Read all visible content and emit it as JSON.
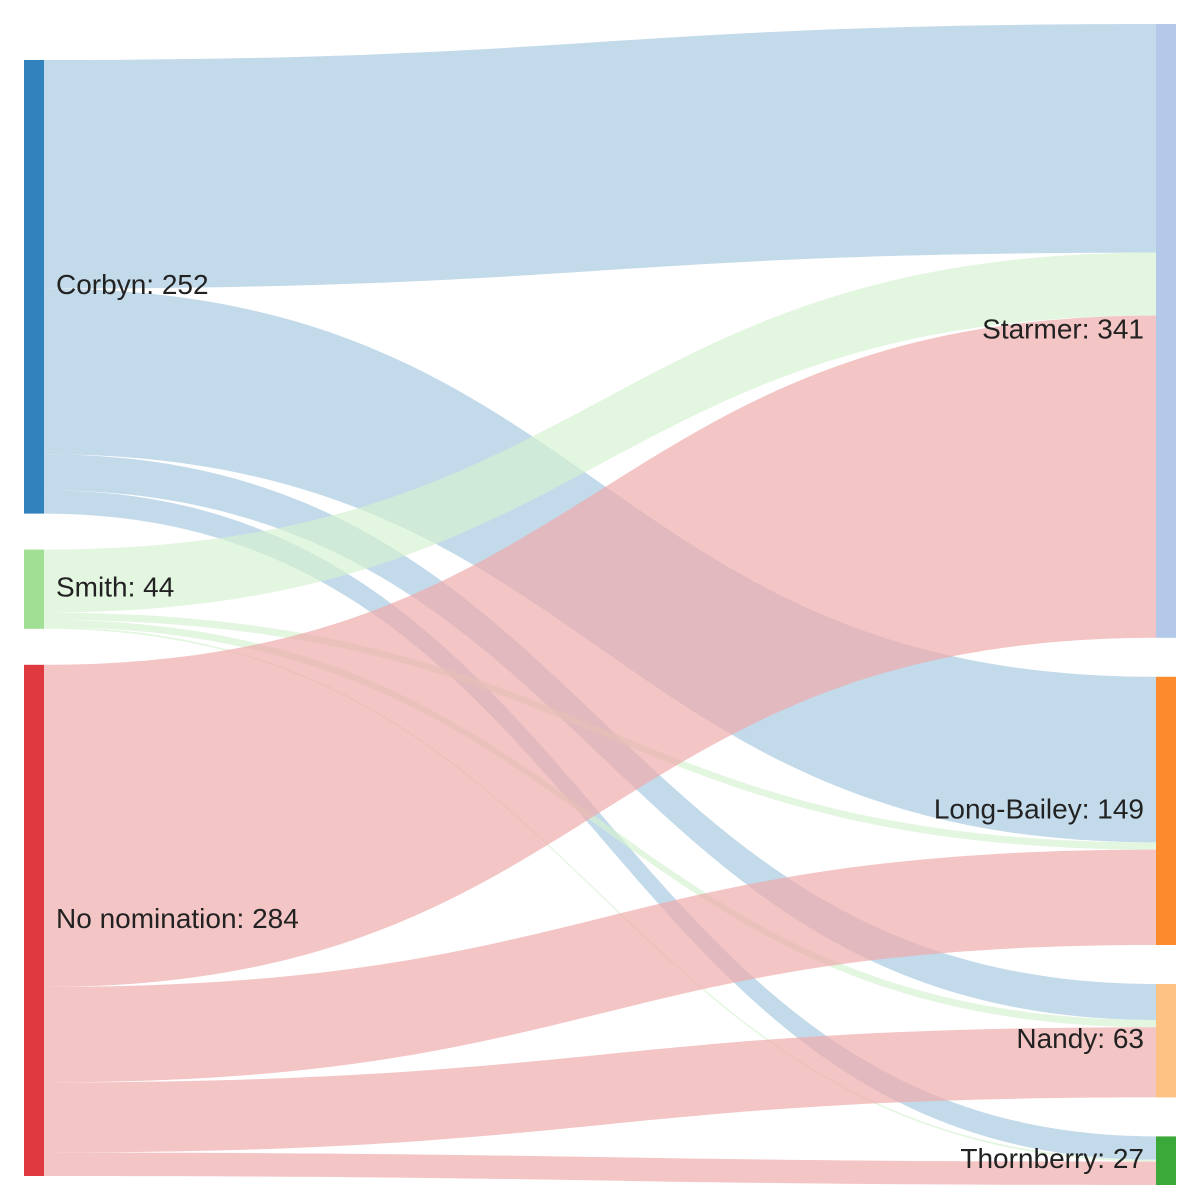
{
  "colors": {
    "Corbyn": "#3182bd",
    "Smith": "#a1e094",
    "No nomination": "#de3a3f",
    "Starmer": "#b4c8ea",
    "Long-Bailey": "#fd8a2c",
    "Nandy": "#fec284",
    "Thornberry": "#3ba83a"
  },
  "link_colors": {
    "Corbyn": "#a6c8e0",
    "Smith": "#d6f2d2",
    "No nomination": "#efaaaa"
  },
  "chart_data": {
    "type": "sankey",
    "title": "",
    "sources": [
      {
        "name": "Corbyn",
        "value": 252,
        "label": "Corbyn: 252"
      },
      {
        "name": "Smith",
        "value": 44,
        "label": "Smith: 44"
      },
      {
        "name": "No nomination",
        "value": 284,
        "label": "No nomination: 284"
      }
    ],
    "targets": [
      {
        "name": "Starmer",
        "value": 341,
        "label": "Starmer: 341"
      },
      {
        "name": "Long-Bailey",
        "value": 149,
        "label": "Long-Bailey: 149"
      },
      {
        "name": "Nandy",
        "value": 63,
        "label": "Nandy: 63"
      },
      {
        "name": "Thornberry",
        "value": 27,
        "label": "Thornberry: 27"
      }
    ],
    "links": [
      {
        "source": "Corbyn",
        "target": "Starmer",
        "value": 127
      },
      {
        "source": "Corbyn",
        "target": "Long-Bailey",
        "value": 92
      },
      {
        "source": "Corbyn",
        "target": "Nandy",
        "value": 20
      },
      {
        "source": "Corbyn",
        "target": "Thornberry",
        "value": 13
      },
      {
        "source": "Smith",
        "target": "Starmer",
        "value": 35
      },
      {
        "source": "Smith",
        "target": "Long-Bailey",
        "value": 4
      },
      {
        "source": "Smith",
        "target": "Nandy",
        "value": 4
      },
      {
        "source": "Smith",
        "target": "Thornberry",
        "value": 1
      },
      {
        "source": "No nomination",
        "target": "Starmer",
        "value": 179
      },
      {
        "source": "No nomination",
        "target": "Long-Bailey",
        "value": 53
      },
      {
        "source": "No nomination",
        "target": "Nandy",
        "value": 39
      },
      {
        "source": "No nomination",
        "target": "Thornberry",
        "value": 13
      }
    ]
  }
}
